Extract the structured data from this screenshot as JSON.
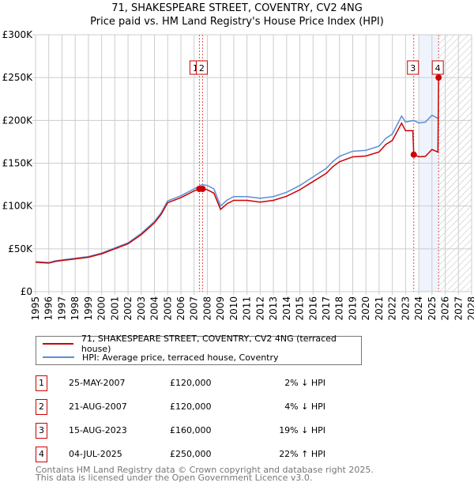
{
  "chart_data": {
    "type": "line",
    "title": "71, SHAKESPEARE STREET, COVENTRY, CV2 4NG",
    "subtitle": "Price paid vs. HM Land Registry's House Price Index (HPI)",
    "xlim": [
      1995,
      2028
    ],
    "ylim": [
      0,
      300000
    ],
    "yticks": [
      {
        "v": 0,
        "label": "£0"
      },
      {
        "v": 50000,
        "label": "£50K"
      },
      {
        "v": 100000,
        "label": "£100K"
      },
      {
        "v": 150000,
        "label": "£150K"
      },
      {
        "v": 200000,
        "label": "£200K"
      },
      {
        "v": 250000,
        "label": "£250K"
      },
      {
        "v": 300000,
        "label": "£300K"
      }
    ],
    "xticks": [
      "1995",
      "1996",
      "1997",
      "1998",
      "1999",
      "2000",
      "2001",
      "2002",
      "2003",
      "2004",
      "2005",
      "2006",
      "2007",
      "2008",
      "2009",
      "2010",
      "2011",
      "2012",
      "2013",
      "2014",
      "2015",
      "2016",
      "2017",
      "2018",
      "2019",
      "2020",
      "2021",
      "2022",
      "2023",
      "2024",
      "2025",
      "2026",
      "2027",
      "2028"
    ],
    "shaded_range": [
      2024,
      2025.5
    ],
    "hatched_from": 2025.5,
    "series": [
      {
        "name": "71, SHAKESPEARE STREET, COVENTRY, CV2 4NG (terraced house)",
        "color": "#cc0000",
        "x": [
          1995,
          1996,
          1996.5,
          1997,
          1998,
          1999,
          2000,
          2001,
          2002,
          2003,
          2004,
          2004.5,
          2005,
          2006,
          2007,
          2007.4,
          2007.64,
          2008,
          2008.5,
          2009,
          2009.5,
          2010,
          2011,
          2012,
          2013,
          2014,
          2015,
          2016,
          2017,
          2017.5,
          2018,
          2019,
          2020,
          2021,
          2021.5,
          2022,
          2022.7,
          2023,
          2023.55,
          2023.62,
          2024,
          2024.5,
          2025,
          2025.45,
          2025.5
        ],
        "y": [
          34300,
          33300,
          35300,
          36300,
          38200,
          40200,
          44100,
          50000,
          55900,
          66600,
          80400,
          90200,
          103900,
          109800,
          117600,
          120000,
          120000,
          119000,
          115000,
          96000,
          102700,
          106600,
          106600,
          104600,
          106600,
          111400,
          119000,
          128600,
          138200,
          146000,
          151700,
          157400,
          158400,
          163200,
          171800,
          176600,
          196800,
          188000,
          188000,
          160000,
          157500,
          158000,
          166000,
          163000,
          250000
        ]
      },
      {
        "name": "HPI: Average price, terraced house, Coventry",
        "color": "#5b8fd6",
        "x": [
          1995,
          1996,
          1996.5,
          1997,
          1998,
          1999,
          2000,
          2001,
          2002,
          2003,
          2004,
          2004.5,
          2005,
          2006,
          2007,
          2007.6,
          2008,
          2008.5,
          2009,
          2009.5,
          2010,
          2011,
          2012,
          2013,
          2014,
          2015,
          2016,
          2017,
          2017.5,
          2018,
          2019,
          2020,
          2021,
          2021.5,
          2022,
          2022.7,
          2023,
          2023.6,
          2024,
          2024.5,
          2025,
          2025.5
        ],
        "y": [
          35000,
          34000,
          36000,
          37000,
          39000,
          41000,
          45000,
          51000,
          57000,
          68000,
          82000,
          92000,
          106000,
          112000,
          120000,
          125000,
          124000,
          120000,
          100000,
          107000,
          111000,
          111000,
          109000,
          111000,
          116000,
          124000,
          134000,
          144000,
          152000,
          158000,
          164000,
          165000,
          170000,
          179000,
          184000,
          205000,
          198000,
          200000,
          197000,
          198000,
          206000,
          202000
        ]
      }
    ],
    "transactions": [
      {
        "id": "1",
        "x": 2007.4,
        "date": "25-MAY-2007",
        "price": 120000,
        "price_label": "£120,000",
        "hpi": "2% ↓ HPI"
      },
      {
        "id": "2",
        "x": 2007.64,
        "date": "21-AUG-2007",
        "price": 120000,
        "price_label": "£120,000",
        "hpi": "4% ↓ HPI"
      },
      {
        "id": "3",
        "x": 2023.62,
        "date": "15-AUG-2023",
        "price": 160000,
        "price_label": "£160,000",
        "hpi": "19% ↓ HPI"
      },
      {
        "id": "4",
        "x": 2025.5,
        "date": "04-JUL-2025",
        "price": 250000,
        "price_label": "£250,000",
        "hpi": "22% ↑ HPI"
      }
    ]
  },
  "footer": {
    "line1": "Contains HM Land Registry data © Crown copyright and database right 2025.",
    "line2": "This data is licensed under the Open Government Licence v3.0."
  }
}
